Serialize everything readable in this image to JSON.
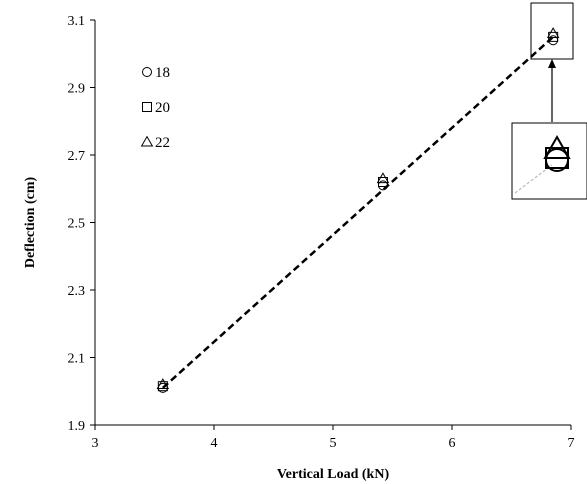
{
  "chart_data": {
    "type": "scatter",
    "title": "",
    "xlabel": "Vertical Load (kN)",
    "ylabel": "Deflection (cm)",
    "xlim": [
      3,
      7
    ],
    "ylim": [
      1.9,
      3.1
    ],
    "xticks": [
      "3",
      "4",
      "5",
      "6",
      "7"
    ],
    "yticks": [
      "1.9",
      "2.1",
      "2.3",
      "2.5",
      "2.7",
      "2.9",
      "3.1"
    ],
    "grid": false,
    "legend_position": "top-left",
    "series": [
      {
        "name": "18",
        "marker": "circle",
        "points": [
          [
            3.57,
            2.01
          ],
          [
            5.42,
            2.61
          ],
          [
            6.85,
            3.04
          ]
        ]
      },
      {
        "name": "20",
        "marker": "square",
        "points": [
          [
            3.57,
            2.015
          ],
          [
            5.42,
            2.62
          ],
          [
            6.85,
            3.05
          ]
        ]
      },
      {
        "name": "22",
        "marker": "triangle",
        "points": [
          [
            3.57,
            2.02
          ],
          [
            5.42,
            2.63
          ],
          [
            6.85,
            3.06
          ]
        ]
      }
    ],
    "trendline": {
      "style": "dashed",
      "points": [
        [
          3.57,
          2.01
        ],
        [
          6.85,
          3.05
        ]
      ]
    },
    "inset": {
      "description": "zoom of markers at x=6.85"
    }
  }
}
